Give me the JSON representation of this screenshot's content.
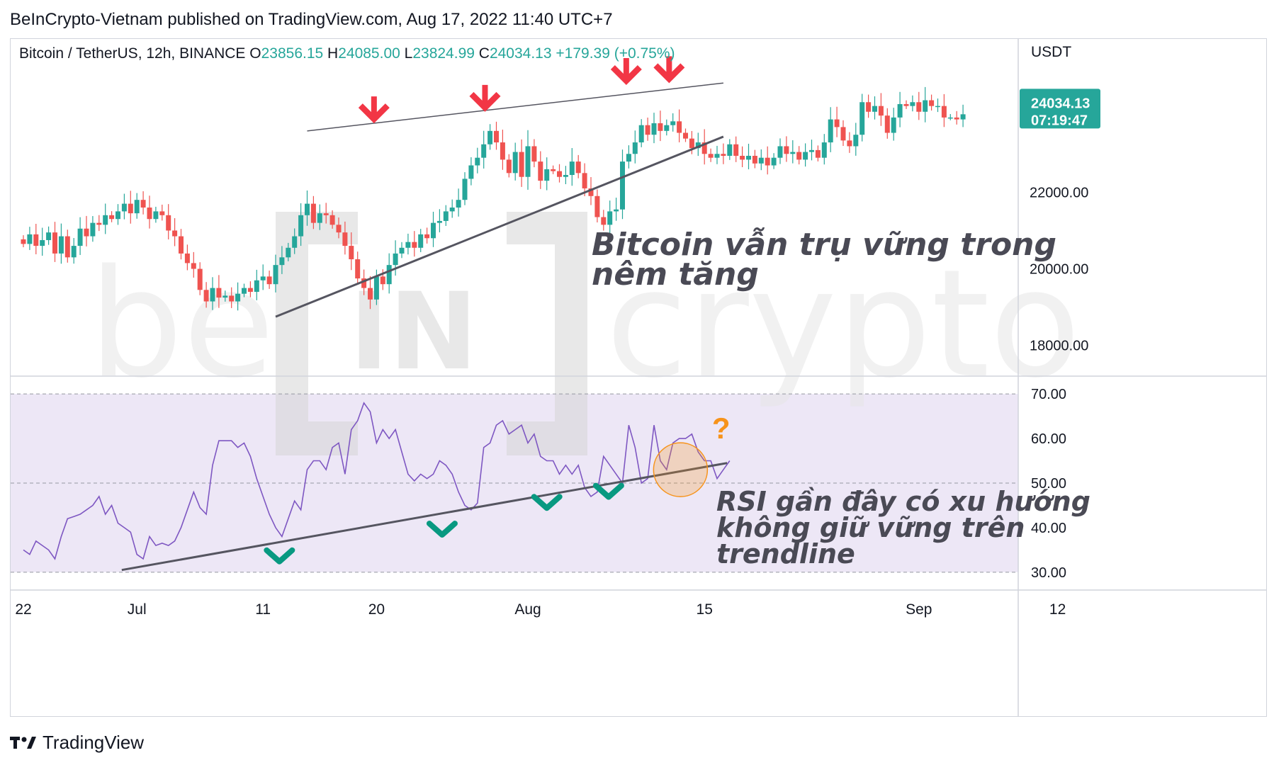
{
  "header": {
    "publish_line": "BeInCrypto-Vietnam published on TradingView.com, Aug 17, 2022 11:40 UTC+7"
  },
  "footer": {
    "brand": "TradingView",
    "logo_icon": "tradingview-logo-icon"
  },
  "colors": {
    "up": "#26a69a",
    "down": "#ef5350",
    "rsi_line": "#7e57c2",
    "rsi_band": "#ede7f6",
    "arrow_red": "#f23645",
    "check_teal": "#089981",
    "question_orange": "#f7931a",
    "trendline": "#555560"
  },
  "chart_data": [
    {
      "type": "candlestick",
      "title": "Bitcoin / TetherUS, 12h, BINANCE",
      "ohlc": {
        "O": "23856.15",
        "H": "24085.00",
        "L": "23824.99",
        "C": "24034.13",
        "change": "+179.39 (+0.75%)"
      },
      "legend_labels": {
        "o": "O",
        "h": "H",
        "l": "L",
        "c": "C"
      },
      "currency": "USDT",
      "last_price": "24034.13",
      "countdown": "07:19:47",
      "y_ticks": [
        {
          "value": 22000,
          "label": "22000.00"
        },
        {
          "value": 20000,
          "label": "20000.00"
        },
        {
          "value": 18000,
          "label": "18000.00"
        }
      ],
      "ylim": [
        17200,
        26000
      ],
      "x_ticks": [
        {
          "day": 0,
          "label": "22"
        },
        {
          "day": 9,
          "label": "Jul"
        },
        {
          "day": 19,
          "label": "11"
        },
        {
          "day": 28,
          "label": "20"
        },
        {
          "day": 40,
          "label": "Aug"
        },
        {
          "day": 54,
          "label": "15"
        },
        {
          "day": 71,
          "label": "Sep"
        },
        {
          "day": 82,
          "label": "12"
        }
      ],
      "x_axis_note": "x = days since Jun 22, 2022 (12h candles every 0.5 day)",
      "closes": [
        20650,
        20900,
        20600,
        20750,
        20950,
        20400,
        20850,
        20300,
        20600,
        21050,
        20850,
        21200,
        21150,
        21400,
        21300,
        21500,
        21700,
        21450,
        21800,
        21600,
        21300,
        21500,
        21400,
        21000,
        20850,
        20400,
        20150,
        20000,
        19450,
        19150,
        19500,
        19250,
        19300,
        19150,
        19350,
        19500,
        19400,
        19700,
        19800,
        19600,
        20100,
        20300,
        20550,
        20850,
        21400,
        21700,
        21200,
        21450,
        21400,
        21150,
        20950,
        20600,
        20250,
        19750,
        19500,
        19200,
        19800,
        19600,
        20100,
        20400,
        20550,
        20700,
        20550,
        20900,
        20800,
        21200,
        21250,
        21500,
        21600,
        21800,
        22350,
        22700,
        22900,
        23250,
        23600,
        23300,
        22850,
        22500,
        23050,
        22400,
        23200,
        22800,
        22300,
        22600,
        22550,
        22400,
        22450,
        22800,
        22500,
        22100,
        21900,
        21350,
        21150,
        21500,
        21550,
        22800,
        23000,
        23300,
        23750,
        23500,
        23800,
        23600,
        23750,
        23850,
        23550,
        23400,
        23150,
        23300,
        23000,
        22900,
        23000,
        22950,
        23250,
        22950,
        22850,
        22950,
        22750,
        22900,
        22700,
        22900,
        23200,
        23000,
        23050,
        22850,
        23050,
        23100,
        22900,
        23300,
        23900,
        23700,
        23350,
        23200,
        23500,
        24350,
        24100,
        24250,
        24000,
        23550,
        23950,
        24300,
        24250,
        24350,
        24100,
        24400,
        24250,
        24250,
        23950,
        23950,
        23900,
        24034
      ]
    },
    {
      "type": "line",
      "title": "RSI",
      "y_ticks": [
        {
          "value": 70,
          "label": "70.00"
        },
        {
          "value": 60,
          "label": "60.00"
        },
        {
          "value": 50,
          "label": "50.00"
        },
        {
          "value": 40,
          "label": "40.00"
        },
        {
          "value": 30,
          "label": "30.00"
        }
      ],
      "band": [
        30,
        70
      ],
      "ylim": [
        26,
        74
      ],
      "values": [
        35,
        34,
        37,
        36,
        35,
        33,
        38,
        42,
        42.5,
        43,
        44,
        45,
        47,
        43,
        45,
        41,
        40,
        39,
        34,
        33,
        38,
        36,
        36.5,
        36,
        37,
        40,
        44,
        48,
        44.5,
        43,
        54,
        59.5,
        59.5,
        59.5,
        58,
        59,
        56,
        51,
        47,
        43,
        40,
        38,
        42,
        46,
        44,
        53,
        55,
        55,
        53,
        58,
        59,
        52,
        62,
        64,
        68,
        66,
        59,
        62,
        60,
        62,
        57,
        52,
        50.5,
        52,
        51,
        52,
        55,
        54,
        52,
        48,
        45,
        44,
        45.5,
        58,
        59,
        63,
        64,
        61,
        62,
        63,
        59,
        61,
        56,
        55,
        55,
        52,
        54,
        52,
        54,
        49,
        47,
        48,
        56,
        54,
        52,
        50,
        63,
        58,
        50,
        51,
        63,
        55,
        53,
        59,
        60,
        60,
        61,
        57,
        55,
        55,
        51,
        53,
        55
      ]
    }
  ],
  "annotations": {
    "wedge_text_line1": "Bitcoin vẫn trụ vững trong",
    "wedge_text_line2": "nêm tăng",
    "rsi_text_line1": "RSI gần đây có xu hướng",
    "rsi_text_line2": "không giữ vững trên",
    "rsi_text_line3": "trendline",
    "question_mark": "?",
    "watermark_text_left": "be",
    "watermark_text_center": "IN",
    "watermark_text_right": "crypto"
  }
}
